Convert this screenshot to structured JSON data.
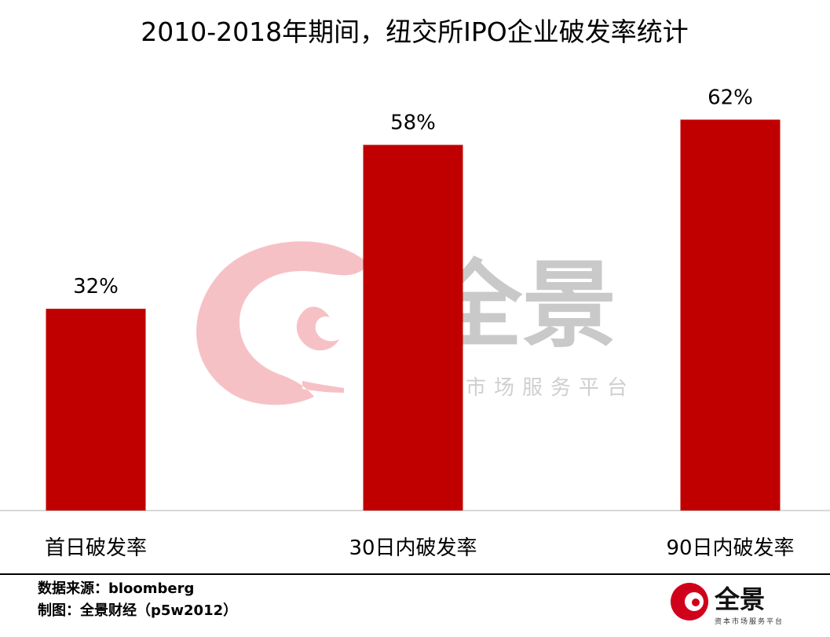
{
  "chart_data": {
    "type": "bar",
    "title": "2010-2018年期间，纽交所IPO企业破发率统计",
    "categories": [
      "首日破发率",
      "30日内破发率",
      "90日内破发率"
    ],
    "values": [
      32,
      58,
      62
    ],
    "value_labels": [
      "32%",
      "58%",
      "62%"
    ],
    "unit": "%",
    "xlabel": "",
    "ylabel": "",
    "ylim": [
      0,
      75
    ],
    "grid": false,
    "legend": "none",
    "bar_color": "#c00000"
  },
  "footer": {
    "source": "数据来源：bloomberg",
    "credit": "制图：全景财经（p5w2012）"
  },
  "watermark": {
    "brand": "全景",
    "slogan": "资本市场服务平台",
    "icon": "swirl-logo-icon"
  },
  "logo": {
    "brand": "全景",
    "slogan": "资本市场服务平台"
  },
  "colors": {
    "bar": "#c00000",
    "watermark_swirl": "#f4b6bb",
    "watermark_text": "#b8b8b8",
    "axis": "#d9d9d9",
    "logo_red": "#d0021b"
  }
}
